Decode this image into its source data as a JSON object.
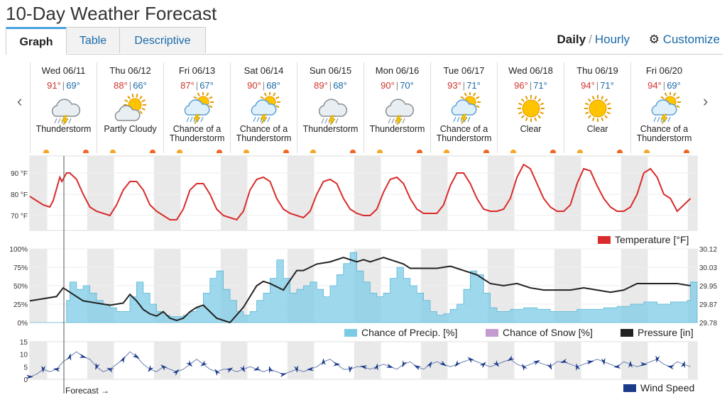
{
  "page_title": "10-Day Weather Forecast",
  "tabs": [
    {
      "label": "Graph",
      "active": true
    },
    {
      "label": "Table",
      "active": false
    },
    {
      "label": "Descriptive",
      "active": false
    }
  ],
  "view_toggle": {
    "daily": "Daily",
    "sep": "/",
    "hourly": "Hourly"
  },
  "customize_label": "Customize",
  "nav": {
    "prev": "‹",
    "next": "›"
  },
  "days": [
    {
      "name": "Wed 06/11",
      "hi": "91°",
      "lo": "69°",
      "cond": "Thunderstorm",
      "icon": "thunderstorm-icon"
    },
    {
      "name": "Thu 06/12",
      "hi": "88°",
      "lo": "66°",
      "cond": "Partly Cloudy",
      "icon": "partly-cloudy-icon"
    },
    {
      "name": "Fri 06/13",
      "hi": "87°",
      "lo": "67°",
      "cond": "Chance of a Thunderstorm",
      "icon": "chance-thunderstorm-icon"
    },
    {
      "name": "Sat 06/14",
      "hi": "90°",
      "lo": "68°",
      "cond": "Chance of a Thunderstorm",
      "icon": "chance-thunderstorm-icon"
    },
    {
      "name": "Sun 06/15",
      "hi": "89°",
      "lo": "68°",
      "cond": "Thunderstorm",
      "icon": "thunderstorm-icon"
    },
    {
      "name": "Mon 06/16",
      "hi": "90°",
      "lo": "70°",
      "cond": "Thunderstorm",
      "icon": "thunderstorm-icon"
    },
    {
      "name": "Tue 06/17",
      "hi": "93°",
      "lo": "71°",
      "cond": "Chance of a Thunderstorm",
      "icon": "chance-thunderstorm-icon"
    },
    {
      "name": "Wed 06/18",
      "hi": "96°",
      "lo": "71°",
      "cond": "Clear",
      "icon": "clear-sun-icon"
    },
    {
      "name": "Thu 06/19",
      "hi": "94°",
      "lo": "71°",
      "cond": "Clear",
      "icon": "clear-sun-icon"
    },
    {
      "name": "Fri 06/20",
      "hi": "94°",
      "lo": "69°",
      "cond": "Chance of a Thunderstorm",
      "icon": "chance-thunderstorm-icon"
    }
  ],
  "forecast_label": "Forecast →",
  "colors": {
    "temperature": "#d92b2b",
    "precip": "#7ccbe6",
    "snow": "#c49bd1",
    "pressure": "#222222",
    "wind": "#1a3a8a",
    "night": "#e9e9e9",
    "sunrise": "#f5a623",
    "sunset": "#f26522"
  },
  "chart_data": [
    {
      "type": "line",
      "legend": "Temperature [°F]",
      "y_ticks": [
        "90 °F",
        "80 °F",
        "70 °F"
      ],
      "ylim": [
        63,
        98
      ],
      "series": [
        {
          "name": "Temperature [°F]",
          "x_days": [
            0,
            0.1,
            0.2,
            0.3,
            0.35,
            0.45,
            0.48,
            0.55,
            0.6,
            0.7,
            0.8,
            0.9,
            1.0,
            1.1,
            1.2,
            1.3,
            1.4,
            1.5,
            1.6,
            1.7,
            1.8,
            1.9,
            2.0,
            2.1,
            2.2,
            2.3,
            2.4,
            2.5,
            2.6,
            2.7,
            2.8,
            2.9,
            3.0,
            3.1,
            3.2,
            3.3,
            3.4,
            3.5,
            3.6,
            3.7,
            3.8,
            3.9,
            4.0,
            4.1,
            4.2,
            4.3,
            4.4,
            4.5,
            4.6,
            4.7,
            4.8,
            4.9,
            5.0,
            5.1,
            5.2,
            5.3,
            5.4,
            5.5,
            5.6,
            5.7,
            5.8,
            5.9,
            6.0,
            6.1,
            6.2,
            6.3,
            6.4,
            6.5,
            6.6,
            6.7,
            6.8,
            6.9,
            7.0,
            7.1,
            7.2,
            7.3,
            7.4,
            7.5,
            7.6,
            7.7,
            7.8,
            7.9,
            8.0,
            8.1,
            8.2,
            8.3,
            8.4,
            8.5,
            8.6,
            8.7,
            8.8,
            8.9,
            9.0,
            9.1,
            9.2,
            9.3,
            9.4,
            9.5,
            9.6,
            9.7,
            9.9
          ],
          "values": [
            79,
            77,
            75,
            74,
            77,
            88,
            86,
            90,
            90,
            87,
            80,
            74,
            72,
            71,
            70,
            75,
            82,
            86,
            86,
            82,
            75,
            72,
            70,
            68,
            68,
            73,
            82,
            85,
            85,
            80,
            73,
            70,
            69,
            68,
            72,
            82,
            87,
            88,
            86,
            78,
            73,
            71,
            70,
            69,
            72,
            80,
            86,
            87,
            85,
            78,
            73,
            71,
            70,
            70,
            73,
            81,
            87,
            88,
            85,
            78,
            73,
            71,
            71,
            71,
            75,
            84,
            90,
            90,
            85,
            78,
            73,
            72,
            72,
            73,
            78,
            88,
            94,
            92,
            85,
            78,
            74,
            72,
            72,
            75,
            85,
            92,
            91,
            84,
            78,
            74,
            72,
            72,
            74,
            80,
            90,
            92,
            88,
            80,
            78,
            72,
            78
          ]
        }
      ]
    },
    {
      "type": "area",
      "legend": [
        "Chance of Precip. [%]",
        "Chance of Snow [%]",
        "Pressure [in]"
      ],
      "y_ticks_left": [
        "100%",
        "75%",
        "50%",
        "25%",
        "0%"
      ],
      "y_ticks_right": [
        "30.12",
        "30.03",
        "29.95",
        "29.87",
        "29.78"
      ],
      "series": [
        {
          "name": "Chance of Precip. [%]",
          "x_days": [
            0,
            0.5,
            0.55,
            0.6,
            0.7,
            0.8,
            0.9,
            1.0,
            1.1,
            1.2,
            1.3,
            1.5,
            1.6,
            1.7,
            1.8,
            1.9,
            2.0,
            2.1,
            2.2,
            2.3,
            2.4,
            2.5,
            2.6,
            2.7,
            2.8,
            2.9,
            3.0,
            3.1,
            3.2,
            3.3,
            3.4,
            3.5,
            3.6,
            3.7,
            3.8,
            3.9,
            4.0,
            4.1,
            4.2,
            4.3,
            4.4,
            4.5,
            4.6,
            4.7,
            4.8,
            4.9,
            5.0,
            5.1,
            5.2,
            5.3,
            5.4,
            5.5,
            5.6,
            5.7,
            5.8,
            5.9,
            6.0,
            6.1,
            6.2,
            6.3,
            6.4,
            6.5,
            6.6,
            6.7,
            6.8,
            6.9,
            7.0,
            7.2,
            7.4,
            7.6,
            7.8,
            8.0,
            8.2,
            8.4,
            8.6,
            8.8,
            9.0,
            9.2,
            9.4,
            9.6,
            9.85,
            9.9
          ],
          "values": [
            0,
            0,
            30,
            55,
            45,
            50,
            40,
            30,
            25,
            20,
            15,
            35,
            55,
            40,
            25,
            15,
            10,
            8,
            8,
            10,
            15,
            20,
            40,
            60,
            70,
            45,
            30,
            15,
            10,
            15,
            30,
            40,
            60,
            85,
            60,
            40,
            45,
            50,
            55,
            45,
            35,
            50,
            65,
            80,
            95,
            70,
            55,
            40,
            35,
            40,
            60,
            75,
            60,
            50,
            40,
            30,
            15,
            10,
            12,
            18,
            25,
            45,
            70,
            65,
            40,
            20,
            15,
            18,
            20,
            18,
            15,
            15,
            18,
            18,
            20,
            22,
            25,
            28,
            25,
            28,
            30,
            55
          ]
        },
        {
          "name": "Chance of Snow [%]",
          "values": []
        },
        {
          "name": "Pressure [in]",
          "x_days": [
            0,
            0.2,
            0.4,
            0.5,
            0.6,
            0.8,
            1.0,
            1.2,
            1.4,
            1.5,
            1.6,
            1.7,
            1.8,
            1.9,
            2.0,
            2.1,
            2.2,
            2.3,
            2.4,
            2.5,
            2.6,
            2.8,
            3.0,
            3.2,
            3.4,
            3.5,
            3.6,
            3.8,
            4.0,
            4.1,
            4.3,
            4.5,
            4.7,
            4.9,
            5.0,
            5.1,
            5.3,
            5.5,
            5.6,
            5.7,
            5.9,
            6.1,
            6.3,
            6.5,
            6.7,
            6.9,
            7.1,
            7.3,
            7.5,
            7.7,
            7.9,
            8.1,
            8.3,
            8.5,
            8.7,
            8.9,
            9.1,
            9.3,
            9.5,
            9.7,
            9.9
          ],
          "values": [
            29.88,
            29.89,
            29.9,
            29.94,
            29.92,
            29.88,
            29.87,
            29.86,
            29.87,
            29.91,
            29.88,
            29.84,
            29.82,
            29.81,
            29.83,
            29.8,
            29.79,
            29.8,
            29.83,
            29.85,
            29.86,
            29.8,
            29.78,
            29.85,
            29.95,
            29.97,
            29.96,
            29.93,
            30.02,
            30.02,
            30.05,
            30.06,
            30.08,
            30.06,
            30.07,
            30.06,
            30.08,
            30.06,
            30.05,
            30.03,
            30.03,
            30.03,
            30.04,
            30.02,
            30.0,
            29.96,
            29.95,
            29.96,
            29.94,
            29.93,
            29.93,
            29.93,
            29.94,
            29.93,
            29.92,
            29.93,
            29.96,
            29.96,
            29.96,
            29.96,
            29.95
          ]
        }
      ]
    },
    {
      "type": "line",
      "legend": "Wind Speed",
      "y_ticks": [
        "15",
        "10",
        "5",
        "0"
      ],
      "ylim": [
        0,
        15
      ],
      "series": [
        {
          "name": "Wind Speed",
          "x_days": [
            0,
            0.1,
            0.2,
            0.3,
            0.4,
            0.5,
            0.6,
            0.7,
            0.8,
            0.9,
            1.0,
            1.1,
            1.2,
            1.3,
            1.4,
            1.5,
            1.6,
            1.7,
            1.8,
            1.9,
            2.0,
            2.1,
            2.2,
            2.3,
            2.4,
            2.5,
            2.6,
            2.7,
            2.8,
            2.9,
            3.0,
            3.1,
            3.2,
            3.3,
            3.4,
            3.5,
            3.6,
            3.7,
            3.8,
            3.9,
            4.0,
            4.1,
            4.2,
            4.3,
            4.4,
            4.5,
            4.6,
            4.7,
            4.8,
            4.9,
            5.0,
            5.1,
            5.2,
            5.3,
            5.4,
            5.5,
            5.6,
            5.7,
            5.8,
            5.9,
            6.0,
            6.1,
            6.2,
            6.3,
            6.4,
            6.5,
            6.6,
            6.7,
            6.8,
            6.9,
            7.0,
            7.1,
            7.2,
            7.3,
            7.4,
            7.5,
            7.6,
            7.7,
            7.8,
            7.9,
            8.0,
            8.1,
            8.2,
            8.3,
            8.4,
            8.5,
            8.6,
            8.7,
            8.8,
            8.9,
            9.0,
            9.1,
            9.2,
            9.3,
            9.4,
            9.5,
            9.6,
            9.7,
            9.8,
            9.9
          ],
          "values": [
            1,
            2,
            4,
            3,
            4,
            7,
            9,
            11,
            9,
            8,
            5,
            3,
            4,
            6,
            8,
            11,
            9,
            6,
            4,
            3,
            5,
            4,
            3,
            4,
            6,
            8,
            6,
            4,
            3,
            4,
            4,
            3,
            4,
            5,
            4,
            3,
            4,
            3,
            2,
            3,
            4,
            3,
            4,
            5,
            7,
            8,
            6,
            4,
            4,
            5,
            5,
            4,
            5,
            6,
            5,
            4,
            6,
            7,
            5,
            4,
            6,
            7,
            6,
            5,
            6,
            7,
            8,
            7,
            6,
            5,
            6,
            7,
            8,
            6,
            5,
            6,
            7,
            6,
            5,
            7,
            7,
            6,
            5,
            6,
            7,
            8,
            7,
            6,
            5,
            7,
            6,
            5,
            6,
            7,
            8,
            6,
            5,
            7,
            6,
            5
          ]
        }
      ]
    }
  ]
}
